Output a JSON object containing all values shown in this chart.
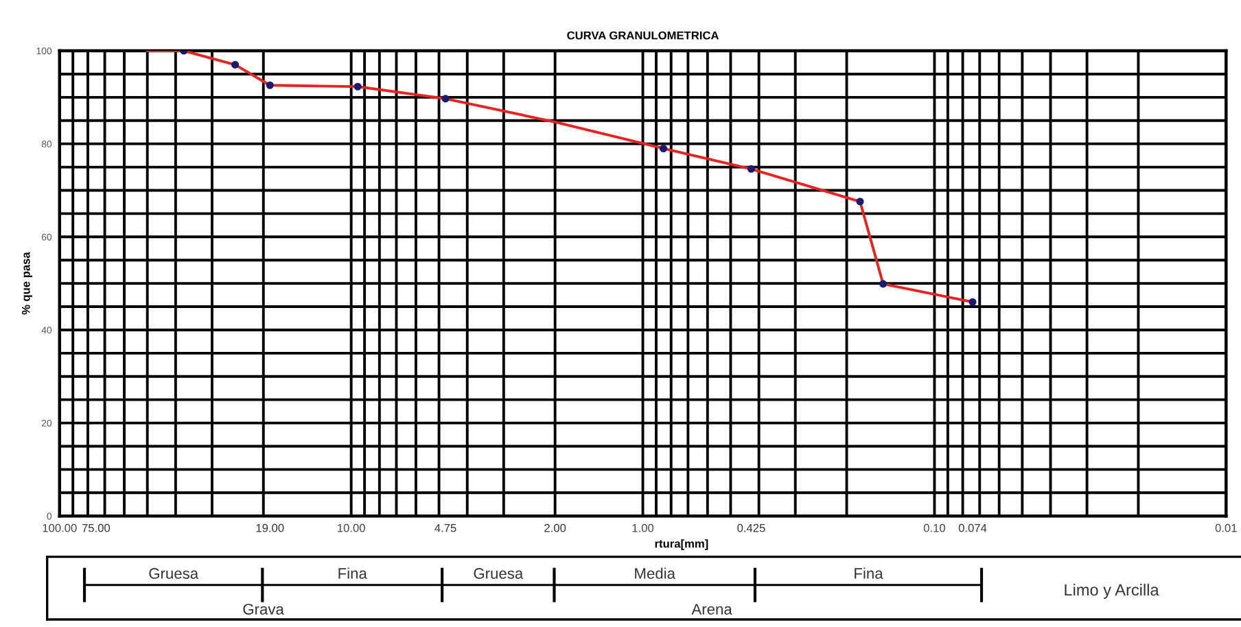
{
  "chart_data": {
    "type": "line",
    "title": "CURVA GRANULOMETRICA",
    "xlabel": "rtura[mm]",
    "ylabel": "% que pasa",
    "log": "x",
    "grid": true,
    "xlim": [
      100,
      0.01
    ],
    "ylim": [
      0,
      100
    ],
    "xticks": [
      {
        "value": 100,
        "label": "100.00"
      },
      {
        "value": 10,
        "label": "10.00"
      },
      {
        "value": 1,
        "label": "1.00"
      },
      {
        "value": 0.1,
        "label": "0.10"
      },
      {
        "value": 0.01,
        "label": "0.01"
      },
      {
        "value": 75,
        "label": "75.00"
      },
      {
        "value": 19,
        "label": "19.00"
      },
      {
        "value": 4.75,
        "label": "4.75"
      },
      {
        "value": 2,
        "label": "2.00"
      },
      {
        "value": 0.425,
        "label": "0.425"
      },
      {
        "value": 0.074,
        "label": "0.074"
      }
    ],
    "yticks": [
      0,
      {
        "value": 5,
        "label": null
      },
      {
        "value": 10,
        "label": null
      },
      {
        "value": 15,
        "label": null
      },
      20,
      {
        "value": 25,
        "label": null
      },
      {
        "value": 30,
        "label": null
      },
      {
        "value": 35,
        "label": null
      },
      40,
      {
        "value": 45,
        "label": null
      },
      {
        "value": 50,
        "label": null
      },
      {
        "value": 55,
        "label": null
      },
      60,
      {
        "value": 65,
        "label": null
      },
      {
        "value": 70,
        "label": null
      },
      {
        "value": 75,
        "label": null
      },
      80,
      {
        "value": 85,
        "label": null
      },
      {
        "value": 90,
        "label": null
      },
      {
        "value": 95,
        "label": null
      },
      100
    ],
    "series": [
      {
        "color": "#e8231f",
        "marker": "none",
        "x": [
          50,
          37.5,
          25,
          19,
          9.5,
          4.75,
          2,
          0.85,
          0.425,
          0.18,
          0.15,
          0.074
        ],
        "values": [
          100,
          100,
          97,
          92.6,
          92.3,
          89.7,
          84.7,
          79,
          74.6,
          67.6,
          49.9,
          46
        ]
      },
      {
        "type": "scatter",
        "color": "#1a1a6e",
        "marker": "circle",
        "x": [
          37.5,
          25,
          19,
          9.5,
          4.75,
          0.85,
          0.425,
          0.18,
          0.15,
          0.074
        ],
        "values": [
          100,
          97,
          92.6,
          92.3,
          89.7,
          79,
          74.6,
          67.6,
          49.9,
          46
        ]
      }
    ],
    "annotations": [
      "Gruesa",
      "Fina",
      "Gruesa",
      "Media",
      "Fina",
      "Grava",
      "Arena",
      "Limo y Arcilla"
    ]
  }
}
